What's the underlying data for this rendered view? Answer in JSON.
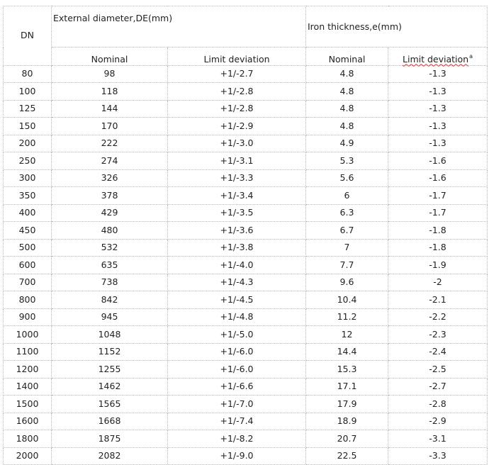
{
  "table": {
    "header": {
      "dn": "DN",
      "external_group": "External diameter,DE(mm)",
      "iron_group": "Iron thickness,e(mm)",
      "ext_nominal": "Nominal",
      "ext_deviation": "Limit deviation",
      "iron_nominal": "Nominal",
      "iron_deviation": "Limit deviation",
      "iron_deviation_mark": "a"
    },
    "rows": [
      [
        "80",
        "98",
        "+1/-2.7",
        "4.8",
        "-1.3"
      ],
      [
        "100",
        "118",
        "+1/-2.8",
        "4.8",
        "-1.3"
      ],
      [
        "125",
        "144",
        "+1/-2.8",
        "4.8",
        "-1.3"
      ],
      [
        "150",
        "170",
        "+1/-2.9",
        "4.8",
        "-1.3"
      ],
      [
        "200",
        "222",
        "+1/-3.0",
        "4.9",
        "-1.3"
      ],
      [
        "250",
        "274",
        "+1/-3.1",
        "5.3",
        "-1.6"
      ],
      [
        "300",
        "326",
        "+1/-3.3",
        "5.6",
        "-1.6"
      ],
      [
        "350",
        "378",
        "+1/-3.4",
        "6",
        "-1.7"
      ],
      [
        "400",
        "429",
        "+1/-3.5",
        "6.3",
        "-1.7"
      ],
      [
        "450",
        "480",
        "+1/-3.6",
        "6.7",
        "-1.8"
      ],
      [
        "500",
        "532",
        "+1/-3.8",
        "7",
        "-1.8"
      ],
      [
        "600",
        "635",
        "+1/-4.0",
        "7.7",
        "-1.9"
      ],
      [
        "700",
        "738",
        "+1/-4.3",
        "9.6",
        "-2"
      ],
      [
        "800",
        "842",
        "+1/-4.5",
        "10.4",
        "-2.1"
      ],
      [
        "900",
        "945",
        "+1/-4.8",
        "11.2",
        "-2.2"
      ],
      [
        "1000",
        "1048",
        "+1/-5.0",
        "12",
        "-2.3"
      ],
      [
        "1100",
        "1152",
        "+1/-6.0",
        "14.4",
        "-2.4"
      ],
      [
        "1200",
        "1255",
        "+1/-6.0",
        "15.3",
        "-2.5"
      ],
      [
        "1400",
        "1462",
        "+1/-6.6",
        "17.1",
        "-2.7"
      ],
      [
        "1500",
        "1565",
        "+1/-7.0",
        "17.9",
        "-2.8"
      ],
      [
        "1600",
        "1668",
        "+1/-7.4",
        "18.9",
        "-2.9"
      ],
      [
        "1800",
        "1875",
        "+1/-8.2",
        "20.7",
        "-3.1"
      ],
      [
        "2000",
        "2082",
        "+1/-9.0",
        "22.5",
        "-3.3"
      ]
    ]
  }
}
